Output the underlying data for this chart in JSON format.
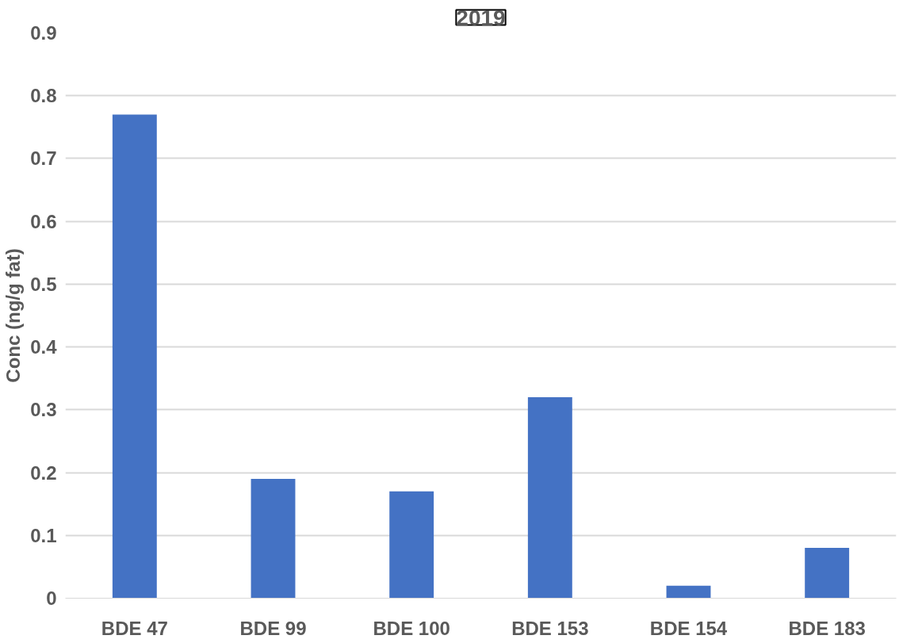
{
  "chart_data": {
    "type": "bar",
    "title": "2019",
    "ylabel": "Conc (ng/g fat)",
    "categories": [
      "BDE 47",
      "BDE 99",
      "BDE 100",
      "BDE 153",
      "BDE 154",
      "BDE 183"
    ],
    "values": [
      0.77,
      0.19,
      0.17,
      0.32,
      0.02,
      0.08
    ],
    "color": "#4472c4",
    "ylim": [
      0,
      0.9
    ],
    "yticks": [
      0,
      0.1,
      0.2,
      0.3,
      0.4,
      0.5,
      0.6,
      0.7,
      0.8,
      0.9
    ],
    "grid": "y"
  }
}
